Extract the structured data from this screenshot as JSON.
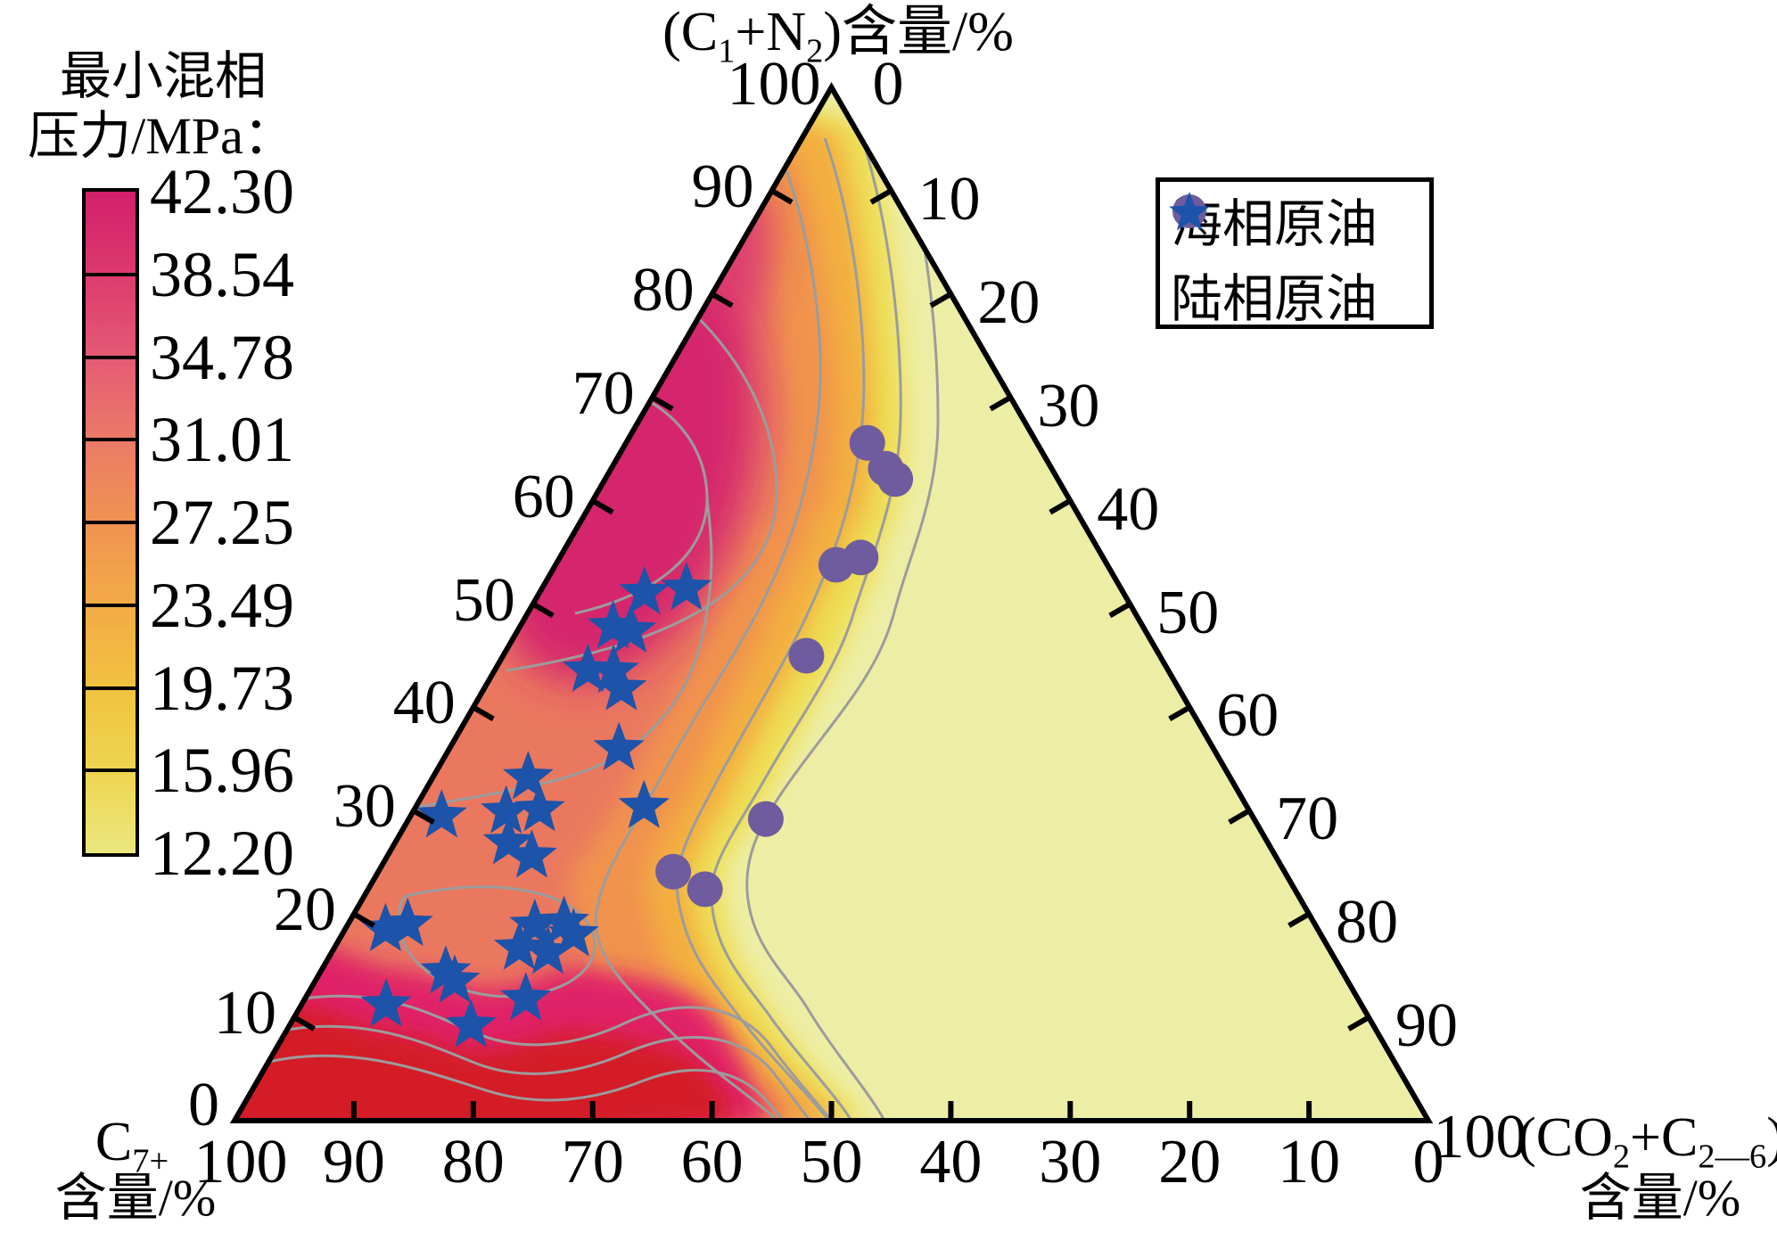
{
  "figure": {
    "background": "#ffffff",
    "contour_line_color": "#9c9c9c",
    "border_color": "#000000"
  },
  "colorbar": {
    "title_line1": "最小混相",
    "title_line2": "压力/MPa：",
    "labels": [
      "42.30",
      "38.54",
      "34.78",
      "31.01",
      "27.25",
      "23.49",
      "19.73",
      "15.96",
      "12.20"
    ],
    "gradient": [
      "#d31f6b",
      "#dc3a6e",
      "#e45a74",
      "#eb7a68",
      "#f09352",
      "#f2ab46",
      "#f1c23f",
      "#eed54f",
      "#ebe77e"
    ]
  },
  "legend": {
    "items": [
      {
        "marker": "circle",
        "color": "#6e5c9e",
        "label": "海相原油"
      },
      {
        "marker": "star",
        "color": "#1d53a9",
        "label": "陆相原油"
      }
    ]
  },
  "axes": {
    "top": {
      "title_html": "(C<sub>1</sub>+N<sub>2</sub>)含量/%",
      "ticks": [
        100,
        90,
        80,
        70,
        60,
        50,
        40,
        30,
        20,
        10,
        0
      ]
    },
    "left": {
      "title_html": "C<sub>7+</sub>",
      "title_line2": "含量/%",
      "ticks": [
        100,
        90,
        80,
        70,
        60,
        50,
        40,
        30,
        20,
        10,
        0
      ]
    },
    "right": {
      "title_html": "(CO<sub>2</sub>+C<sub>2—6</sub>)",
      "title_line2": "含量/%",
      "ticks": [
        0,
        10,
        20,
        30,
        40,
        50,
        60,
        70,
        80,
        90,
        100
      ]
    }
  },
  "chart_data": {
    "type": "ternary_contour",
    "title": "",
    "axes": {
      "top_axis_label": "(C1+N2)含量/%",
      "bottom_left_axis_label": "C7+含量/%",
      "bottom_right_axis_label": "(CO2+C2-6)含量/%",
      "tick_step": 10,
      "range": [
        0,
        100
      ]
    },
    "colormap": {
      "label": "最小混相压力/MPa",
      "levels": [
        42.3,
        38.54,
        34.78,
        31.01,
        27.25,
        23.49,
        19.73,
        15.96,
        12.2
      ],
      "high_color": "#d31f6b",
      "low_color": "#ebe77e",
      "over_range_color": "#d41f26"
    },
    "point_format": "[C1N2_pct, C7plus_pct, CO2C26_pct]",
    "series": [
      {
        "name": "海相原油",
        "marker": "circle",
        "color": "#6e5c9e",
        "points": [
          [
            65.6,
            14.2,
            20.2
          ],
          [
            63.1,
            13.9,
            23.0
          ],
          [
            62.1,
            13.6,
            24.3
          ],
          [
            54.5,
            20.3,
            25.2
          ],
          [
            53.8,
            22.7,
            23.5
          ],
          [
            45.0,
            29.6,
            25.4
          ],
          [
            29.2,
            40.9,
            29.9
          ],
          [
            24.1,
            51.2,
            24.7
          ],
          [
            22.4,
            49.4,
            28.2
          ]
        ]
      },
      {
        "name": "陆相原油",
        "marker": "star",
        "color": "#1d53a9",
        "points": [
          [
            51.1,
            40.1,
            8.8
          ],
          [
            51.5,
            36.4,
            12.1
          ],
          [
            47.8,
            44.4,
            7.8
          ],
          [
            47.4,
            43.1,
            9.5
          ],
          [
            43.6,
            48.6,
            7.8
          ],
          [
            43.5,
            46.5,
            10.0
          ],
          [
            41.8,
            46.7,
            11.5
          ],
          [
            36.0,
            49.8,
            14.2
          ],
          [
            33.2,
            58.8,
            8.0
          ],
          [
            30.4,
            50.5,
            19.1
          ],
          [
            29.5,
            67.9,
            2.6
          ],
          [
            29.9,
            62.3,
            7.8
          ],
          [
            30.1,
            59.4,
            10.5
          ],
          [
            26.9,
            63.6,
            9.5
          ],
          [
            25.6,
            62.3,
            12.1
          ],
          [
            18.5,
            78.1,
            3.4
          ],
          [
            19.0,
            76.0,
            5.0
          ],
          [
            18.9,
            65.4,
            15.7
          ],
          [
            19.2,
            62.8,
            18.0
          ],
          [
            18.0,
            62.6,
            19.4
          ],
          [
            16.7,
            67.8,
            15.5
          ],
          [
            16.3,
            65.6,
            18.1
          ],
          [
            14.4,
            75.1,
            10.5
          ],
          [
            13.5,
            74.8,
            11.7
          ],
          [
            11.2,
            81.7,
            7.1
          ],
          [
            11.8,
            69.7,
            18.5
          ],
          [
            9.2,
            75.6,
            15.2
          ]
        ]
      }
    ]
  }
}
